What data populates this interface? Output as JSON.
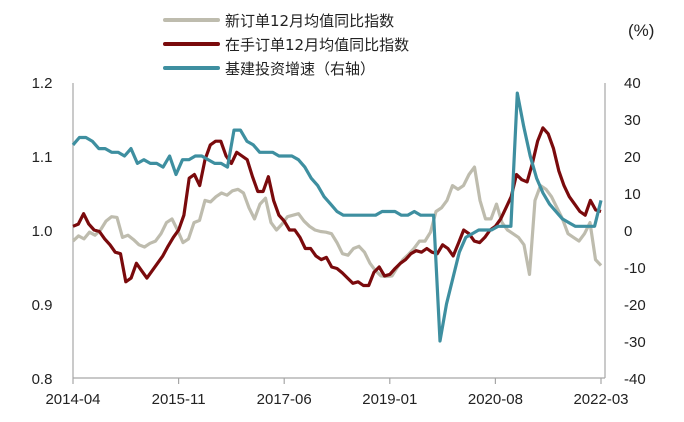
{
  "chart_data": {
    "type": "line",
    "title": "",
    "xlabel": "",
    "ylabel": "",
    "y2label": "(%)",
    "ylim": [
      0.8,
      1.2
    ],
    "y2lim": [
      -40,
      40
    ],
    "yticks": [
      "1.2",
      "1.1",
      "1.0",
      "0.9",
      "0.8"
    ],
    "y2ticks": [
      "40",
      "30",
      "20",
      "10",
      "0",
      "-10",
      "-20",
      "-30",
      "-40"
    ],
    "xticks": [
      "2014-04",
      "2015-11",
      "2017-06",
      "2019-01",
      "2020-08",
      "2022-03"
    ],
    "x_start": "2014-04",
    "x_end": "2022-03",
    "frequency": "monthly",
    "grid": false,
    "legend_position": "top",
    "series": [
      {
        "name": "新订单12月均值同比指数",
        "axis": "left",
        "color": "#BEBCAE",
        "values": [
          0.985,
          0.992,
          0.988,
          0.997,
          0.993,
          1.0,
          1.012,
          1.018,
          1.017,
          0.99,
          0.993,
          0.987,
          0.98,
          0.977,
          0.982,
          0.985,
          0.995,
          1.01,
          1.015,
          1.0,
          0.983,
          0.988,
          1.01,
          1.013,
          1.04,
          1.038,
          1.045,
          1.05,
          1.047,
          1.053,
          1.055,
          1.05,
          1.03,
          1.015,
          1.035,
          1.043,
          1.01,
          1.0,
          1.008,
          1.018,
          1.02,
          1.022,
          1.012,
          1.005,
          1.0,
          0.998,
          0.997,
          0.995,
          0.983,
          0.968,
          0.966,
          0.975,
          0.978,
          0.97,
          0.955,
          0.945,
          0.938,
          0.937,
          0.938,
          0.95,
          0.96,
          0.967,
          0.975,
          0.985,
          0.985,
          0.997,
          1.025,
          1.03,
          1.04,
          1.06,
          1.055,
          1.06,
          1.075,
          1.085,
          1.04,
          1.015,
          1.015,
          1.035,
          1.01,
          1.0,
          0.995,
          0.99,
          0.98,
          0.94,
          1.04,
          1.06,
          1.055,
          1.045,
          1.03,
          1.015,
          0.995,
          0.99,
          0.985,
          0.995,
          1.01,
          0.96,
          0.952
        ]
      },
      {
        "name": "在手订单12月均值同比指数",
        "axis": "left",
        "color": "#7A0A0C",
        "values": [
          1.005,
          1.008,
          1.022,
          1.008,
          1.0,
          0.998,
          0.988,
          0.98,
          0.97,
          0.968,
          0.93,
          0.935,
          0.955,
          0.945,
          0.935,
          0.945,
          0.955,
          0.965,
          0.978,
          0.99,
          1.0,
          1.02,
          1.07,
          1.075,
          1.06,
          1.095,
          1.115,
          1.12,
          1.12,
          1.1,
          1.09,
          1.105,
          1.1,
          1.095,
          1.072,
          1.052,
          1.052,
          1.072,
          1.04,
          1.02,
          1.012,
          1.0,
          1.0,
          0.99,
          0.975,
          0.975,
          0.965,
          0.96,
          0.963,
          0.95,
          0.948,
          0.942,
          0.935,
          0.928,
          0.93,
          0.925,
          0.925,
          0.943,
          0.95,
          0.938,
          0.94,
          0.948,
          0.955,
          0.96,
          0.968,
          0.972,
          0.97,
          0.975,
          0.97,
          0.968,
          0.98,
          0.975,
          0.965,
          0.982,
          1.0,
          0.995,
          0.985,
          0.983,
          0.99,
          1.0,
          1.005,
          1.015,
          1.03,
          1.045,
          1.075,
          1.068,
          1.065,
          1.09,
          1.12,
          1.138,
          1.13,
          1.11,
          1.08,
          1.06,
          1.045,
          1.035,
          1.025,
          1.02,
          1.04,
          1.027,
          1.025
        ]
      },
      {
        "name": "基建投资增速（右轴）",
        "axis": "right",
        "color": "#3E8FA0",
        "values": [
          23,
          25,
          25,
          24,
          22,
          22,
          21,
          21,
          20,
          22,
          18,
          19,
          18,
          18,
          17,
          20,
          15,
          19,
          19,
          20,
          20,
          19,
          18,
          18,
          17,
          27,
          27,
          24,
          23,
          21,
          21,
          21,
          20,
          20,
          20,
          19,
          17,
          14,
          12,
          9,
          7,
          5,
          4,
          4,
          4,
          4,
          4,
          4,
          5,
          5,
          5,
          4,
          4,
          5,
          4,
          4,
          4,
          -30,
          -20,
          -13,
          -6,
          -2,
          -1,
          0,
          0,
          0,
          1,
          1,
          1,
          37,
          28,
          20,
          14,
          10,
          7,
          5,
          3,
          2,
          1,
          1,
          1,
          1,
          8
        ]
      }
    ]
  },
  "legend": {
    "items": [
      {
        "label": "新订单12月均值同比指数",
        "color": "#BEBCAE"
      },
      {
        "label": "在手订单12月均值同比指数",
        "color": "#7A0A0C"
      },
      {
        "label": "基建投资增速（右轴）",
        "color": "#3E8FA0"
      }
    ]
  },
  "axes": {
    "left_ticks": [
      "1.2",
      "1.1",
      "1.0",
      "0.9",
      "0.8"
    ],
    "right_ticks": [
      "40",
      "30",
      "20",
      "10",
      "0",
      "-10",
      "-20",
      "-30",
      "-40"
    ],
    "right_unit": "(%)",
    "x_ticks": [
      "2014-04",
      "2015-11",
      "2017-06",
      "2019-01",
      "2020-08",
      "2022-03"
    ]
  }
}
